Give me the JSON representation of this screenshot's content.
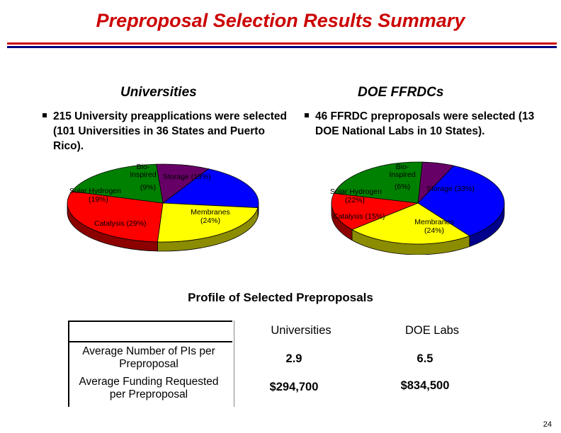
{
  "title": "Preproposal Selection Results Summary",
  "universities": {
    "heading": "Universities",
    "bullet": "215 University preapplications were selected  (101 Universities in 36 States and Puerto Rico).",
    "pie_labels": {
      "bio": [
        "Bio-",
        "Inspired",
        "(9%)"
      ],
      "storage": "Storage (19%)",
      "solar": [
        "Solar Hydrogen",
        "(19%)"
      ],
      "catalysis": "Catalysis (29%)",
      "membranes": [
        "Membranes",
        "(24%)"
      ]
    }
  },
  "ffrdc": {
    "heading": "DOE FFRDCs",
    "bullet": "46 FFRDC preproposals were selected (13 DOE National Labs in 10 States).",
    "pie_labels": {
      "bio": [
        "Bio-",
        "Inspired",
        "(6%)"
      ],
      "storage": "Storage (33%)",
      "solar": [
        "Solar Hydrogen",
        "(22%)"
      ],
      "catalysis": "Catalysis (15%)",
      "membranes": [
        "Membranes",
        "(24%)"
      ]
    }
  },
  "chart_data": [
    {
      "type": "pie",
      "title": "Universities",
      "categories": [
        "Bio-Inspired",
        "Storage",
        "Membranes",
        "Catalysis",
        "Solar Hydrogen"
      ],
      "values": [
        9,
        19,
        24,
        29,
        19
      ],
      "colors": [
        "#660066",
        "#0000ff",
        "#ffff00",
        "#ff0000",
        "#008000"
      ]
    },
    {
      "type": "pie",
      "title": "DOE FFRDCs",
      "categories": [
        "Bio-Inspired",
        "Storage",
        "Membranes",
        "Catalysis",
        "Solar Hydrogen"
      ],
      "values": [
        6,
        33,
        24,
        15,
        22
      ],
      "colors": [
        "#660066",
        "#0000ff",
        "#ffff00",
        "#ff0000",
        "#008000"
      ]
    }
  ],
  "profile": {
    "title": "Profile of Selected Preproposals",
    "col_headers": [
      "Universities",
      "DOE Labs"
    ],
    "rows": [
      {
        "label": "Average Number of PIs per Preproposal",
        "values": [
          "2.9",
          "6.5"
        ]
      },
      {
        "label": "Average Funding Requested per Preproposal",
        "values": [
          "$294,700",
          "$834,500"
        ]
      }
    ]
  },
  "page_number": "24"
}
